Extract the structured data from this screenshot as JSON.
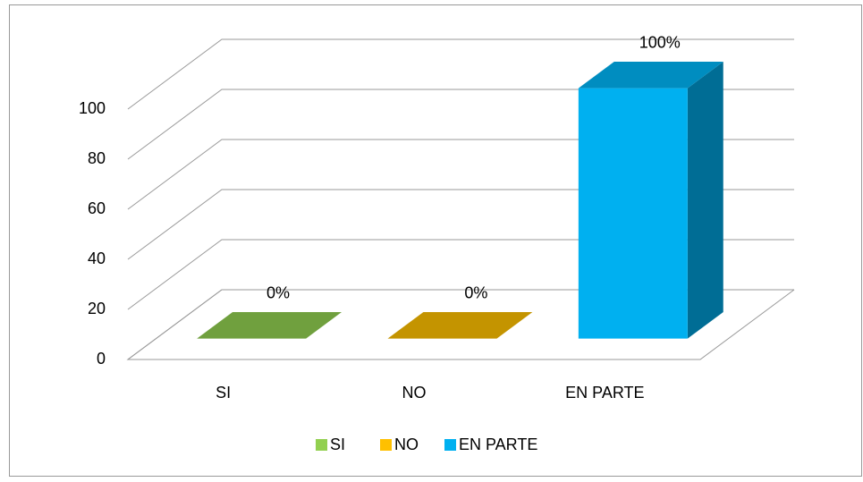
{
  "chart_data": {
    "type": "bar3d",
    "categories": [
      "SI",
      "NO",
      "EN PARTE"
    ],
    "values": [
      0,
      0,
      100
    ],
    "value_labels": [
      "0%",
      "0%",
      "100%"
    ],
    "colors": [
      "#92d050",
      "#ffc000",
      "#00b0f0"
    ],
    "ylim": [
      0,
      100
    ],
    "yticks": [
      0,
      20,
      40,
      60,
      80,
      100
    ],
    "grid": true,
    "legend": "bottom"
  }
}
